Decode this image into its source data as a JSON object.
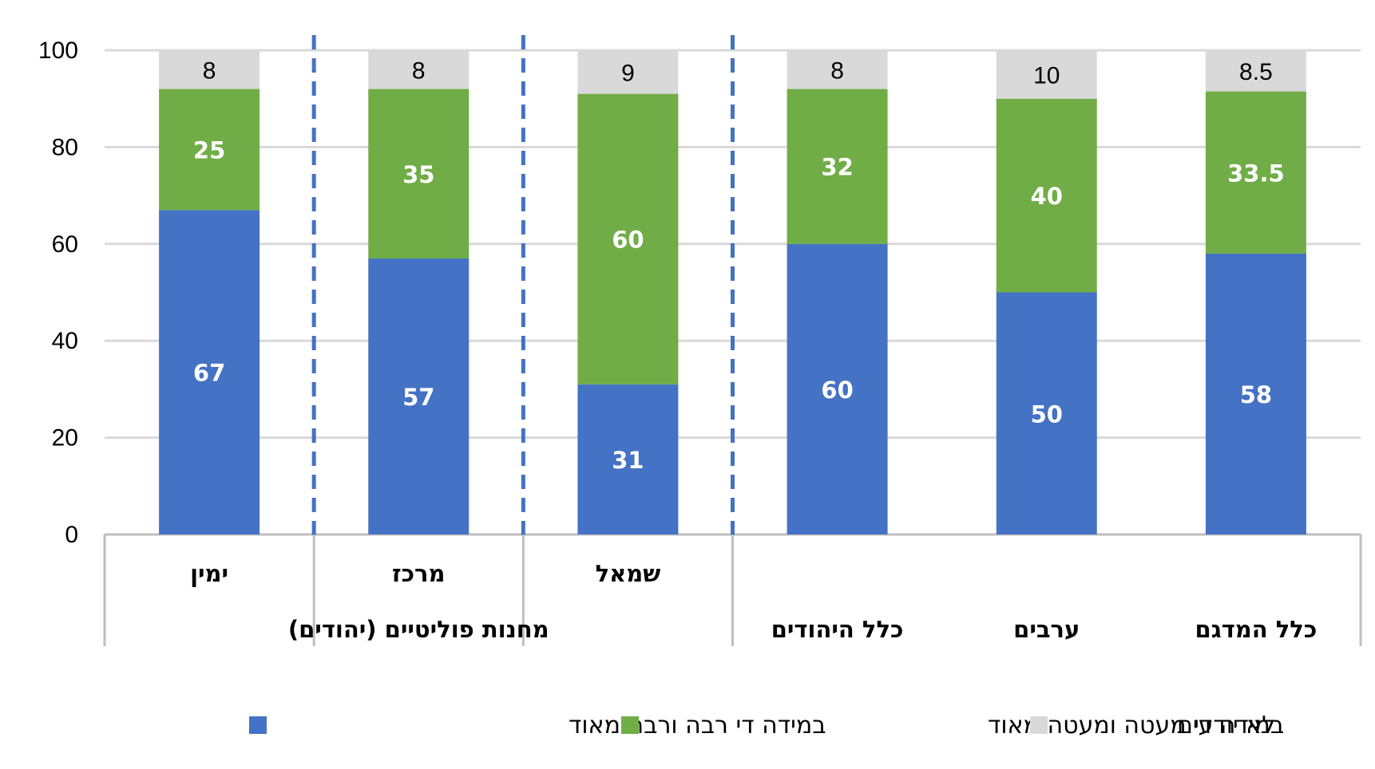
{
  "chart_data": {
    "type": "bar",
    "stacked": true,
    "ylim": [
      0,
      100
    ],
    "yticks": [
      "0",
      "20",
      "40",
      "60",
      "80",
      "100"
    ],
    "grid": true,
    "legend_position": "bottom",
    "categories": [
      "כלל המדגם",
      "ערבים",
      "כלל היהודים",
      "שמאל",
      "מרכז",
      "ימין"
    ],
    "group_labels": [
      "כלל המדגם",
      "ערבים",
      "כלל היהודים",
      "מחנות פוליטיים (יהודים)"
    ],
    "series": [
      {
        "name": "במידה די רבה ורבה מאוד",
        "color": "#4472C4",
        "values": [
          58,
          50,
          60,
          31,
          57,
          67
        ],
        "labels": [
          "58",
          "50",
          "60",
          "31",
          "57",
          "67"
        ]
      },
      {
        "name": "במידה די מעטה ומעטה מאוד",
        "color": "#70AD47",
        "values": [
          33.5,
          40,
          32,
          60,
          35,
          25
        ],
        "labels": [
          "33.5",
          "40",
          "32",
          "60",
          "35",
          "25"
        ]
      },
      {
        "name": "לא יודעים",
        "color": "#D9D9D9",
        "values": [
          8.5,
          10,
          8,
          9,
          8,
          8
        ],
        "labels": [
          "8.5",
          "10",
          "8",
          "9",
          "8",
          "8"
        ]
      }
    ]
  }
}
